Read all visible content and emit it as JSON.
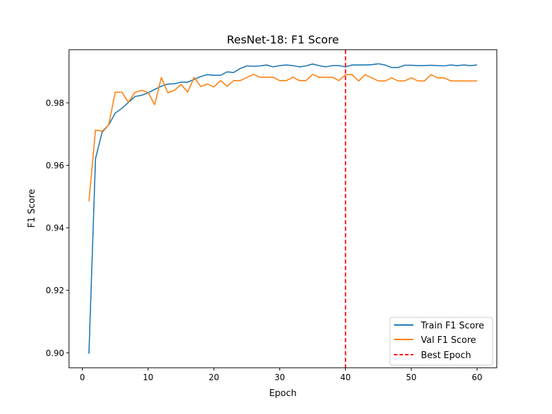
{
  "chart_data": {
    "type": "line",
    "title": "ResNet-18: F1 Score",
    "xlabel": "Epoch",
    "ylabel": "F1 Score",
    "xlim": [
      -2.03,
      63.0
    ],
    "ylim": [
      0.8952,
      0.997
    ],
    "xticks": [
      0,
      10,
      20,
      30,
      40,
      50,
      60
    ],
    "xtick_labels": [
      "0",
      "10",
      "20",
      "30",
      "40",
      "50",
      "60"
    ],
    "yticks": [
      0.9,
      0.92,
      0.94,
      0.96,
      0.98
    ],
    "ytick_labels": [
      "0.90",
      "0.92",
      "0.94",
      "0.96",
      "0.98"
    ],
    "grid": false,
    "legend_position": "lower right",
    "x": [
      1,
      2,
      3,
      4,
      5,
      6,
      7,
      8,
      9,
      10,
      11,
      12,
      13,
      14,
      15,
      16,
      17,
      18,
      19,
      20,
      21,
      22,
      23,
      24,
      25,
      26,
      27,
      28,
      29,
      30,
      31,
      32,
      33,
      34,
      35,
      36,
      37,
      38,
      39,
      40,
      41,
      42,
      43,
      44,
      45,
      46,
      47,
      48,
      49,
      50,
      51,
      52,
      53,
      54,
      55,
      56,
      57,
      58,
      59,
      60
    ],
    "series": [
      {
        "name": "Train F1 Score",
        "color": "#1f77b4",
        "style": "solid",
        "values": [
          0.8997,
          0.9621,
          0.9706,
          0.9729,
          0.9767,
          0.9782,
          0.9801,
          0.982,
          0.9824,
          0.9832,
          0.9843,
          0.9853,
          0.986,
          0.9861,
          0.9866,
          0.9866,
          0.9875,
          0.9884,
          0.989,
          0.9888,
          0.9888,
          0.9899,
          0.9897,
          0.991,
          0.9918,
          0.9917,
          0.9918,
          0.9921,
          0.9915,
          0.9919,
          0.9921,
          0.9919,
          0.9915,
          0.9918,
          0.9924,
          0.9919,
          0.9915,
          0.9919,
          0.9919,
          0.9915,
          0.9921,
          0.9921,
          0.9921,
          0.9922,
          0.9925,
          0.9921,
          0.9913,
          0.9913,
          0.992,
          0.992,
          0.9919,
          0.9919,
          0.992,
          0.9919,
          0.9918,
          0.9921,
          0.9919,
          0.9921,
          0.9919,
          0.9921
        ]
      },
      {
        "name": "Val F1 Score",
        "color": "#ff7f0e",
        "style": "solid",
        "values": [
          0.9485,
          0.9713,
          0.9709,
          0.9729,
          0.9834,
          0.9834,
          0.9802,
          0.9833,
          0.984,
          0.9833,
          0.9794,
          0.9881,
          0.9832,
          0.984,
          0.9859,
          0.9834,
          0.9881,
          0.9852,
          0.986,
          0.9851,
          0.9871,
          0.9853,
          0.9871,
          0.9871,
          0.9881,
          0.9891,
          0.9882,
          0.9882,
          0.9882,
          0.9871,
          0.9871,
          0.9882,
          0.9871,
          0.9871,
          0.9891,
          0.9882,
          0.9882,
          0.9882,
          0.9871,
          0.989,
          0.989,
          0.987,
          0.989,
          0.988,
          0.987,
          0.987,
          0.988,
          0.987,
          0.987,
          0.988,
          0.987,
          0.987,
          0.989,
          0.988,
          0.988,
          0.987,
          0.987,
          0.987,
          0.987,
          0.987
        ]
      }
    ],
    "annotations": [
      {
        "type": "vline",
        "x": 40,
        "name": "Best Epoch",
        "color": "#ff0000",
        "style": "dashed"
      }
    ],
    "legend": [
      {
        "label": "Train F1 Score",
        "color": "#1f77b4",
        "style": "solid"
      },
      {
        "label": "Val F1 Score",
        "color": "#ff7f0e",
        "style": "solid"
      },
      {
        "label": "Best Epoch",
        "color": "#ff0000",
        "style": "dashed"
      }
    ]
  }
}
